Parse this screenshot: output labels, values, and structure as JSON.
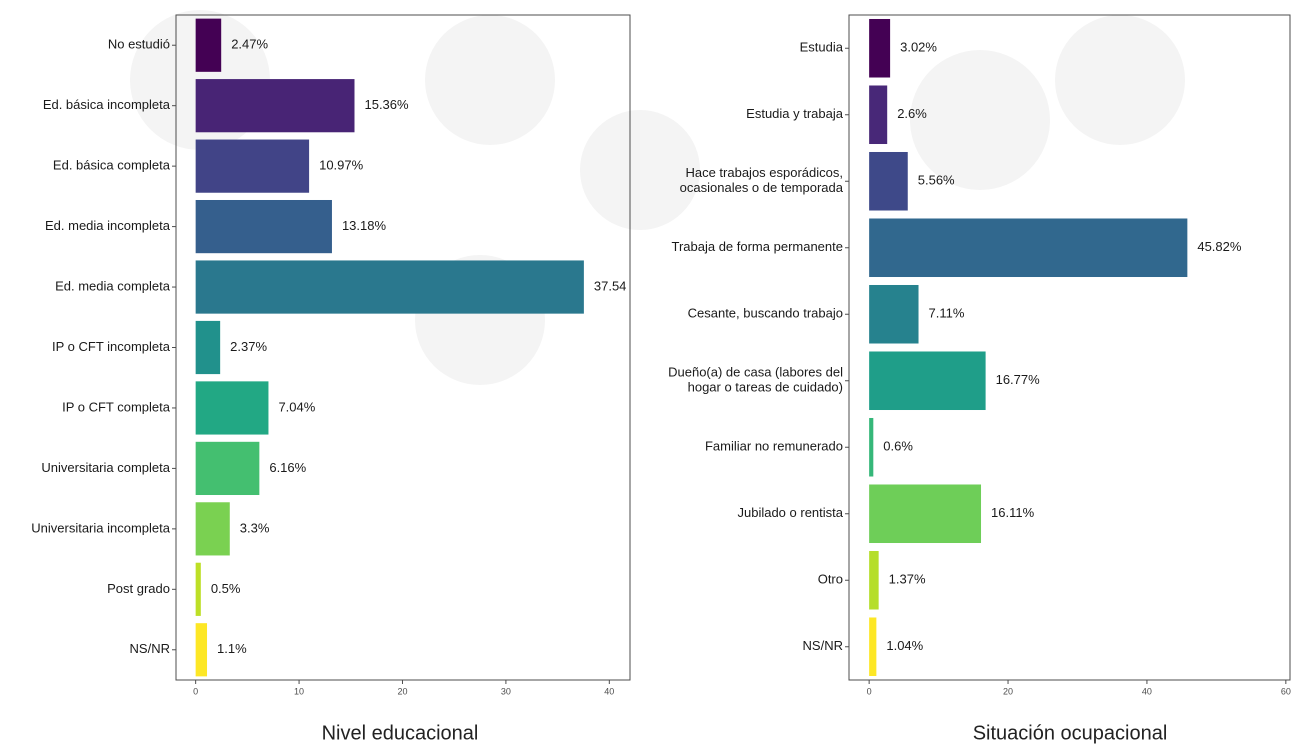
{
  "chart_data": [
    {
      "type": "bar",
      "orientation": "horizontal",
      "title": "Nivel educacional",
      "categories": [
        "No estudió",
        "Ed. básica incompleta",
        "Ed. básica completa",
        "Ed. media incompleta",
        "Ed. media completa",
        "IP o CFT incompleta",
        "IP o CFT completa",
        "Universitaria completa",
        "Universitaria incompleta",
        "Post grado",
        "NS/NR"
      ],
      "values": [
        2.47,
        15.36,
        10.97,
        13.18,
        37.54,
        2.37,
        7.04,
        6.16,
        3.3,
        0.5,
        1.1
      ],
      "value_labels": [
        "2.47%",
        "15.36%",
        "10.97%",
        "13.18%",
        "37.54",
        "2.37%",
        "7.04%",
        "6.16%",
        "3.3%",
        "0.5%",
        "1.1%"
      ],
      "colors": [
        "#440154",
        "#482475",
        "#414487",
        "#355f8d",
        "#2a788e",
        "#21918c",
        "#22a884",
        "#44bf70",
        "#7ad151",
        "#bddf26",
        "#fde725"
      ],
      "xlim": [
        -1.9,
        42
      ],
      "xticks": [
        0,
        10,
        20,
        30,
        40
      ]
    },
    {
      "type": "bar",
      "orientation": "horizontal",
      "title": "Situación ocupacional",
      "categories": [
        "Estudia",
        "Estudia y trabaja",
        "Hace trabajos esporádicos,\nocasionales o de temporada",
        "Trabaja de forma permanente",
        "Cesante, buscando trabajo",
        "Dueño(a) de casa (labores del\nhogar o tareas de cuidado)",
        "Familiar no remunerado",
        "Jubilado o rentista",
        "Otro",
        "NS/NR"
      ],
      "values": [
        3.02,
        2.6,
        5.56,
        45.82,
        7.11,
        16.77,
        0.6,
        16.11,
        1.37,
        1.04
      ],
      "value_labels": [
        "3.02%",
        "2.6%",
        "5.56%",
        "45.82%",
        "7.11%",
        "16.77%",
        "0.6%",
        "16.11%",
        "1.37%",
        "1.04%"
      ],
      "colors": [
        "#440154",
        "#482878",
        "#3e4989",
        "#31688e",
        "#26828e",
        "#1f9e89",
        "#35b779",
        "#6ece58",
        "#b5de2b",
        "#fde725"
      ],
      "xlim": [
        -2.9,
        60.6
      ],
      "xticks": [
        0,
        20,
        40,
        60
      ]
    }
  ]
}
